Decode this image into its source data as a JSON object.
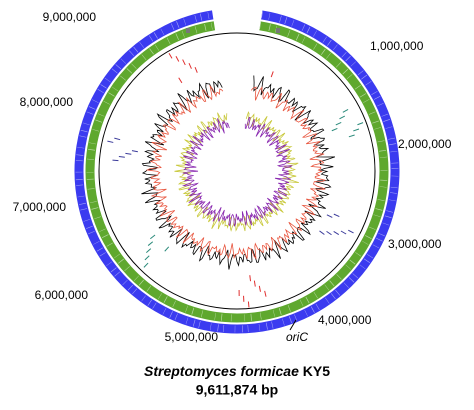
{
  "position_labels": [
    "1,000,000",
    "2,000,000",
    "3,000,000",
    "4,000,000",
    "5,000,000",
    "6,000,000",
    "7,000,000",
    "8,000,000",
    "9,000,000"
  ],
  "origin_label": "oriC",
  "title": {
    "species": "Streptomyces formicae",
    "strain": "KY5"
  },
  "genome_size": "9,611,874 bp"
}
